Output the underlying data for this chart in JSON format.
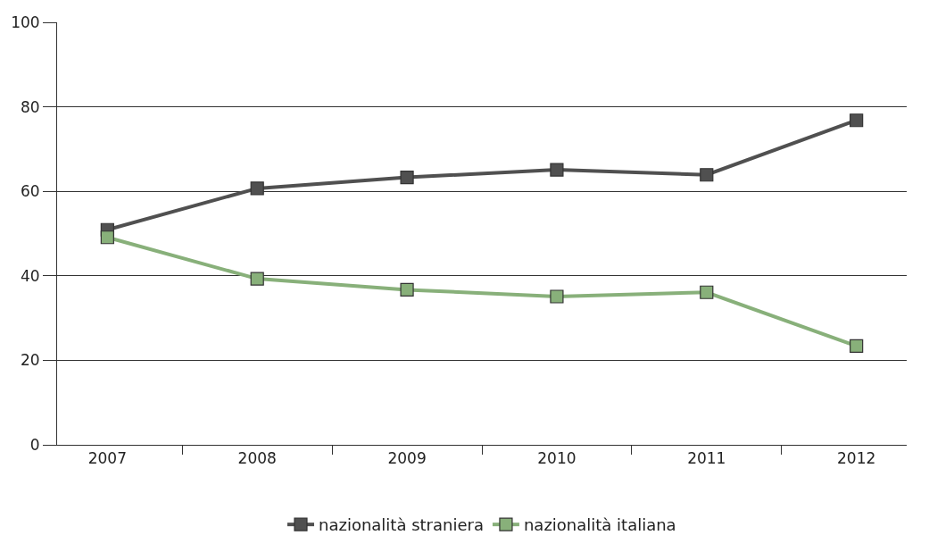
{
  "chart_data": {
    "type": "line",
    "categories": [
      "2007",
      "2008",
      "2009",
      "2010",
      "2011",
      "2012"
    ],
    "series": [
      {
        "name": "nazionalità straniera",
        "color": "#505050",
        "values": [
          50.9,
          60.7,
          63.3,
          65.1,
          63.9,
          76.8
        ]
      },
      {
        "name": "nazionalità italiana",
        "color": "#88b07a",
        "values": [
          49.1,
          39.3,
          36.7,
          35.1,
          36.1,
          23.4
        ]
      }
    ],
    "ylim": [
      0,
      100
    ],
    "yticks": [
      0,
      20,
      40,
      60,
      80,
      100
    ],
    "grid": "y",
    "legend": "bottom",
    "marker": "square",
    "line_style": "solid"
  }
}
